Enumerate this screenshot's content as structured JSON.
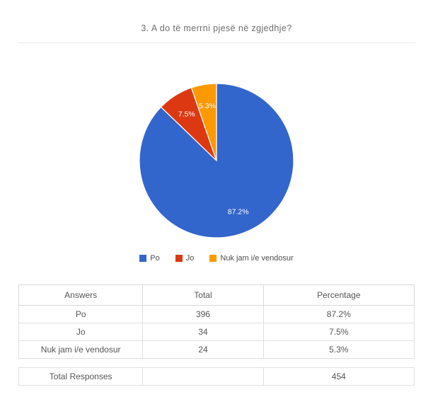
{
  "title": "3. A do të merrni pjesë në zgjedhje?",
  "chart_data": {
    "type": "pie",
    "title": "3. A do të merrni pjesë në zgjedhje?",
    "categories": [
      "Po",
      "Jo",
      "Nuk jam i/e vendosur"
    ],
    "values": [
      396,
      34,
      24
    ],
    "slices": [
      {
        "label": "Po",
        "value": 396,
        "percentage": "87.2%",
        "color": "#3366cc"
      },
      {
        "label": "Jo",
        "value": 34,
        "percentage": "7.5%",
        "color": "#dc3912"
      },
      {
        "label": "Nuk jam i/e vendosur",
        "value": 24,
        "percentage": "5.3%",
        "color": "#ff9900"
      }
    ],
    "total_responses": 454,
    "legend_position": "bottom",
    "start_angle": "top",
    "direction": "clockwise",
    "labels": "inside-percent",
    "label_color": "#ffffff"
  },
  "table": {
    "headers": [
      "Answers",
      "Total",
      "Percentage"
    ],
    "rows": [
      [
        "Po",
        "396",
        "87.2%"
      ],
      [
        "Jo",
        "34",
        "7.5%"
      ],
      [
        "Nuk jam i/e vendosur",
        "24",
        "5.3%"
      ]
    ],
    "footer": {
      "label": "Total Responses",
      "total": "454"
    }
  }
}
